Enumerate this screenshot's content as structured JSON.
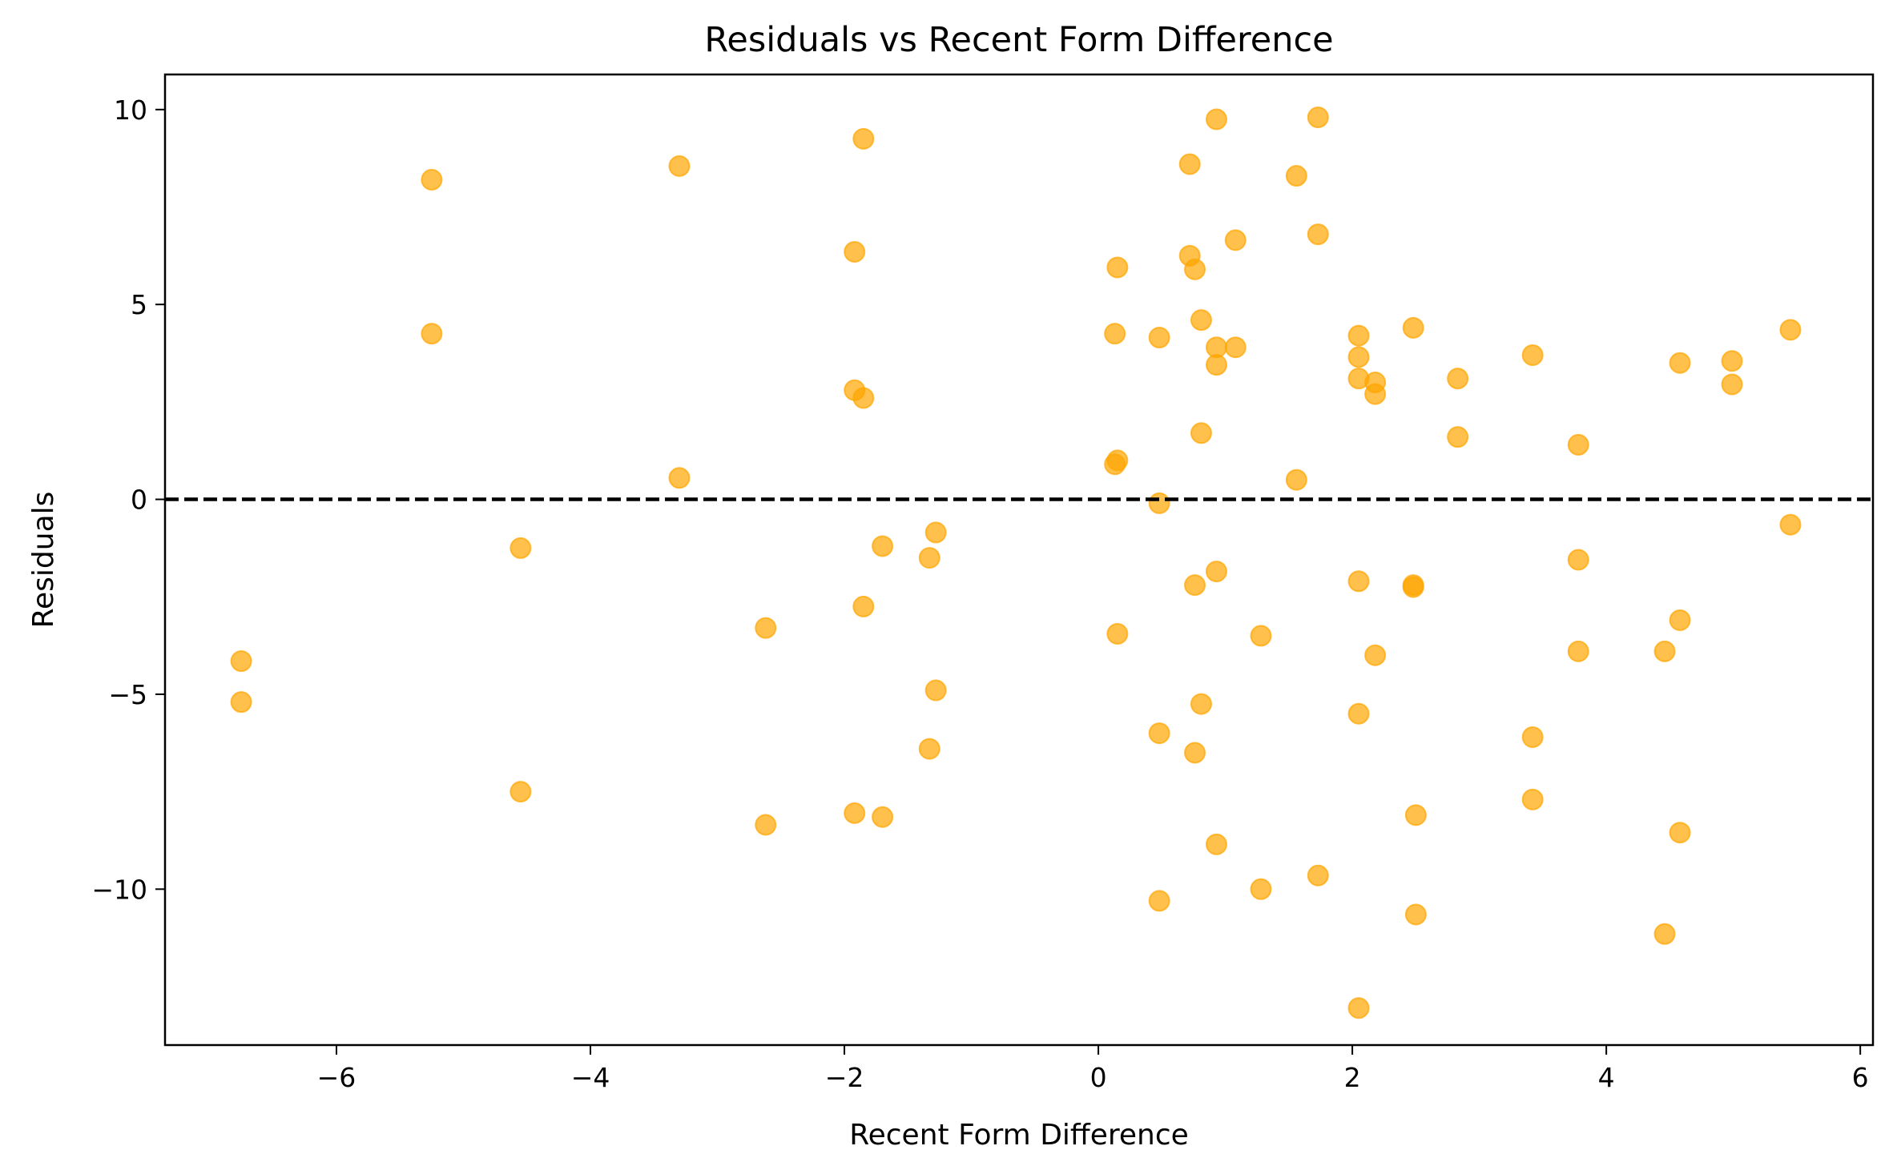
{
  "chart_data": {
    "type": "scatter",
    "title": "Residuals vs Recent Form Difference",
    "xlabel": "Recent Form Difference",
    "ylabel": "Residuals",
    "xlim": [
      -7.35,
      6.1
    ],
    "ylim": [
      -14.0,
      10.9
    ],
    "xticks": [
      -6,
      -4,
      -2,
      0,
      2,
      4,
      6
    ],
    "yticks": [
      10,
      5,
      0,
      -5,
      -10
    ],
    "xtick_labels": [
      "−6",
      "−4",
      "−2",
      "0",
      "2",
      "4",
      "6"
    ],
    "ytick_labels": [
      "10",
      "5",
      "0",
      "−5",
      "−10"
    ],
    "grid": false,
    "reference_line": {
      "y": 0,
      "style": "dashed",
      "color": "#000000"
    },
    "marker_color": "#FFA500",
    "marker_alpha": 0.7,
    "points": [
      {
        "x": -6.75,
        "y": -4.15
      },
      {
        "x": -6.75,
        "y": -5.2
      },
      {
        "x": -5.25,
        "y": 8.2
      },
      {
        "x": -5.25,
        "y": 4.25
      },
      {
        "x": -4.55,
        "y": -1.25
      },
      {
        "x": -4.55,
        "y": -7.5
      },
      {
        "x": -3.3,
        "y": 8.55
      },
      {
        "x": -3.3,
        "y": 0.55
      },
      {
        "x": -2.62,
        "y": -3.3
      },
      {
        "x": -2.62,
        "y": -8.35
      },
      {
        "x": -1.92,
        "y": 6.35
      },
      {
        "x": -1.92,
        "y": 2.8
      },
      {
        "x": -1.92,
        "y": -8.05
      },
      {
        "x": -1.85,
        "y": 9.25
      },
      {
        "x": -1.85,
        "y": 2.6
      },
      {
        "x": -1.85,
        "y": -2.75
      },
      {
        "x": -1.7,
        "y": -1.2
      },
      {
        "x": -1.7,
        "y": -8.15
      },
      {
        "x": -1.33,
        "y": -1.5
      },
      {
        "x": -1.33,
        "y": -6.4
      },
      {
        "x": -1.28,
        "y": -0.85
      },
      {
        "x": -1.28,
        "y": -4.9
      },
      {
        "x": 0.13,
        "y": 4.25
      },
      {
        "x": 0.13,
        "y": 0.9
      },
      {
        "x": 0.15,
        "y": 5.95
      },
      {
        "x": 0.15,
        "y": 1.0
      },
      {
        "x": 0.15,
        "y": -3.45
      },
      {
        "x": 0.48,
        "y": 4.15
      },
      {
        "x": 0.48,
        "y": -0.1
      },
      {
        "x": 0.48,
        "y": -6.0
      },
      {
        "x": 0.48,
        "y": -10.3
      },
      {
        "x": 0.72,
        "y": 8.6
      },
      {
        "x": 0.72,
        "y": 6.25
      },
      {
        "x": 0.76,
        "y": 5.9
      },
      {
        "x": 0.76,
        "y": -2.2
      },
      {
        "x": 0.76,
        "y": -6.5
      },
      {
        "x": 0.81,
        "y": 4.6
      },
      {
        "x": 0.81,
        "y": 1.7
      },
      {
        "x": 0.81,
        "y": -5.25
      },
      {
        "x": 0.93,
        "y": 9.75
      },
      {
        "x": 0.93,
        "y": 3.9
      },
      {
        "x": 0.93,
        "y": 3.45
      },
      {
        "x": 0.93,
        "y": -1.85
      },
      {
        "x": 0.93,
        "y": -8.85
      },
      {
        "x": 1.08,
        "y": 6.65
      },
      {
        "x": 1.08,
        "y": 3.9
      },
      {
        "x": 1.28,
        "y": -3.5
      },
      {
        "x": 1.28,
        "y": -10.0
      },
      {
        "x": 1.56,
        "y": 8.3
      },
      {
        "x": 1.56,
        "y": 0.5
      },
      {
        "x": 1.73,
        "y": 9.8
      },
      {
        "x": 1.73,
        "y": 6.8
      },
      {
        "x": 1.73,
        "y": -9.65
      },
      {
        "x": 2.05,
        "y": 4.2
      },
      {
        "x": 2.05,
        "y": 3.65
      },
      {
        "x": 2.05,
        "y": 3.1
      },
      {
        "x": 2.05,
        "y": -2.1
      },
      {
        "x": 2.05,
        "y": -5.5
      },
      {
        "x": 2.05,
        "y": -13.05
      },
      {
        "x": 2.18,
        "y": 3.0
      },
      {
        "x": 2.18,
        "y": 2.7
      },
      {
        "x": 2.18,
        "y": -4.0
      },
      {
        "x": 2.48,
        "y": 4.4
      },
      {
        "x": 2.48,
        "y": -2.2
      },
      {
        "x": 2.48,
        "y": -2.25
      },
      {
        "x": 2.5,
        "y": -8.1
      },
      {
        "x": 2.5,
        "y": -10.65
      },
      {
        "x": 2.83,
        "y": 3.1
      },
      {
        "x": 2.83,
        "y": 1.6
      },
      {
        "x": 3.42,
        "y": 3.7
      },
      {
        "x": 3.42,
        "y": -6.1
      },
      {
        "x": 3.42,
        "y": -7.7
      },
      {
        "x": 3.78,
        "y": 1.4
      },
      {
        "x": 3.78,
        "y": -1.55
      },
      {
        "x": 3.78,
        "y": -3.9
      },
      {
        "x": 4.46,
        "y": -3.9
      },
      {
        "x": 4.46,
        "y": -11.15
      },
      {
        "x": 4.58,
        "y": 3.5
      },
      {
        "x": 4.58,
        "y": -3.1
      },
      {
        "x": 4.58,
        "y": -8.55
      },
      {
        "x": 4.99,
        "y": 3.55
      },
      {
        "x": 4.99,
        "y": 2.95
      },
      {
        "x": 5.45,
        "y": 4.35
      },
      {
        "x": 5.45,
        "y": -0.65
      }
    ]
  }
}
